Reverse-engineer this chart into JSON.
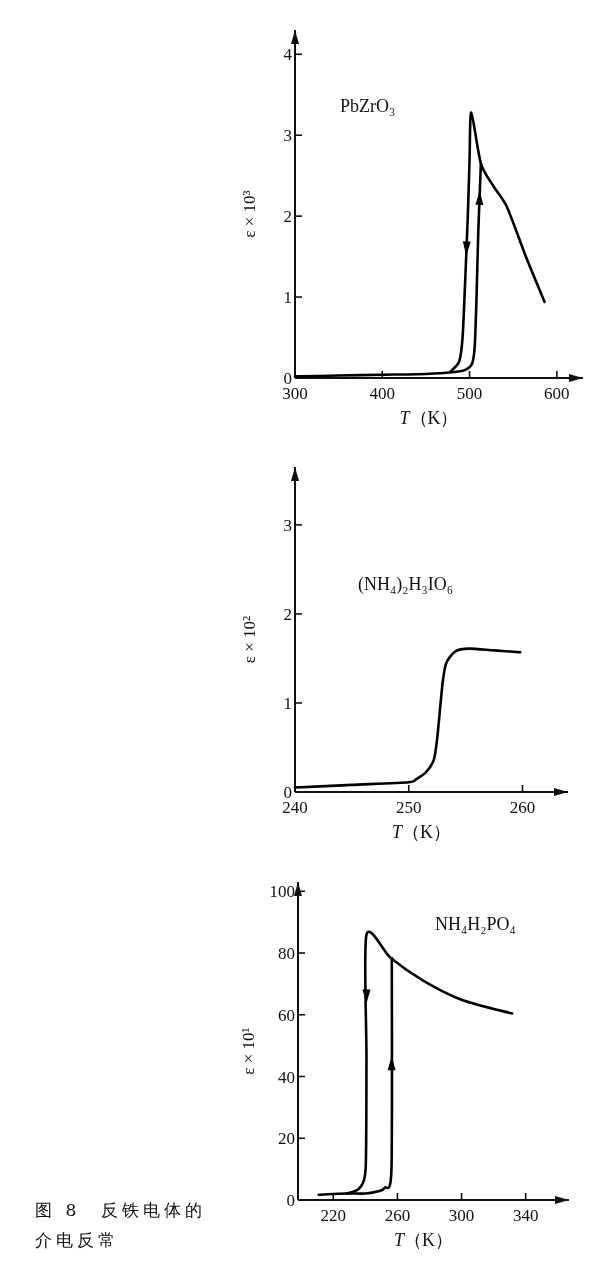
{
  "chart_data": [
    {
      "type": "line",
      "title": "PbZrO₃",
      "xlabel": "*T*（K）",
      "ylabel": "ε × 10³",
      "xlim": [
        300,
        630
      ],
      "ylim": [
        0,
        4.3
      ],
      "xticks": [
        300,
        400,
        500,
        600
      ],
      "yticks": [
        0,
        1,
        2,
        3,
        4
      ],
      "series": [
        {
          "color": "#000000",
          "x": [
            586,
            566,
            543,
            528,
            513,
            502,
            500,
            498,
            495,
            492,
            488,
            478
          ],
          "values": [
            0.94,
            1.46,
            2.11,
            2.36,
            2.65,
            3.28,
            2.7,
            2.0,
            1.2,
            0.5,
            0.2,
            0.08
          ]
        },
        {
          "color": "#000000",
          "x": [
            300,
            350,
            400,
            450,
            480,
            495,
            503,
            506,
            508,
            510,
            513
          ],
          "values": [
            0.02,
            0.03,
            0.04,
            0.05,
            0.07,
            0.1,
            0.18,
            0.4,
            1.0,
            1.8,
            2.65
          ]
        }
      ]
    },
    {
      "type": "line",
      "title": "(NH₄)₂H₃IO₆",
      "xlabel": "*T*（K）",
      "ylabel": "ε × 10²",
      "xlim": [
        240,
        264
      ],
      "ylim": [
        0,
        3.65
      ],
      "xticks": [
        240,
        250,
        260
      ],
      "yticks": [
        0,
        1,
        2,
        3
      ],
      "series": [
        {
          "color": "#000000",
          "x": [
            240,
            245,
            250,
            250.6,
            251.5,
            252.2,
            252.5,
            252.8,
            253,
            253.3,
            254.1,
            255.3,
            257.5,
            259.8
          ],
          "values": [
            0.05,
            0.08,
            0.11,
            0.14,
            0.22,
            0.36,
            0.6,
            1.0,
            1.25,
            1.45,
            1.58,
            1.61,
            1.59,
            1.57
          ]
        }
      ]
    },
    {
      "type": "line",
      "title": "NH₄H₂PO₄",
      "xlabel": "*T*（K）",
      "ylabel": "ε × 10¹",
      "xlim": [
        198,
        367
      ],
      "ylim": [
        0,
        103
      ],
      "xticks": [
        220,
        260,
        300,
        340
      ],
      "yticks": [
        0,
        20,
        40,
        60,
        80,
        100
      ],
      "annotations": [
        "图 8　反铁电体的介电反常"
      ],
      "series": [
        {
          "color": "#000000",
          "x": [
            331.5,
            300.3,
            276.3,
            255.8,
            240.7,
            240.7,
            240.2,
            236.6,
            232,
            228.2
          ],
          "values": [
            60.4,
            64.8,
            71,
            78.4,
            85.9,
            46,
            10.2,
            4.0,
            2.6,
            2.1
          ]
        },
        {
          "color": "#000000",
          "x": [
            210.9,
            228.2,
            240.2,
            248,
            252.2,
            256.3,
            256.5
          ],
          "values": [
            1.7,
            2.1,
            2.1,
            2.8,
            4.0,
            10.2,
            78.4
          ]
        }
      ]
    }
  ]
}
